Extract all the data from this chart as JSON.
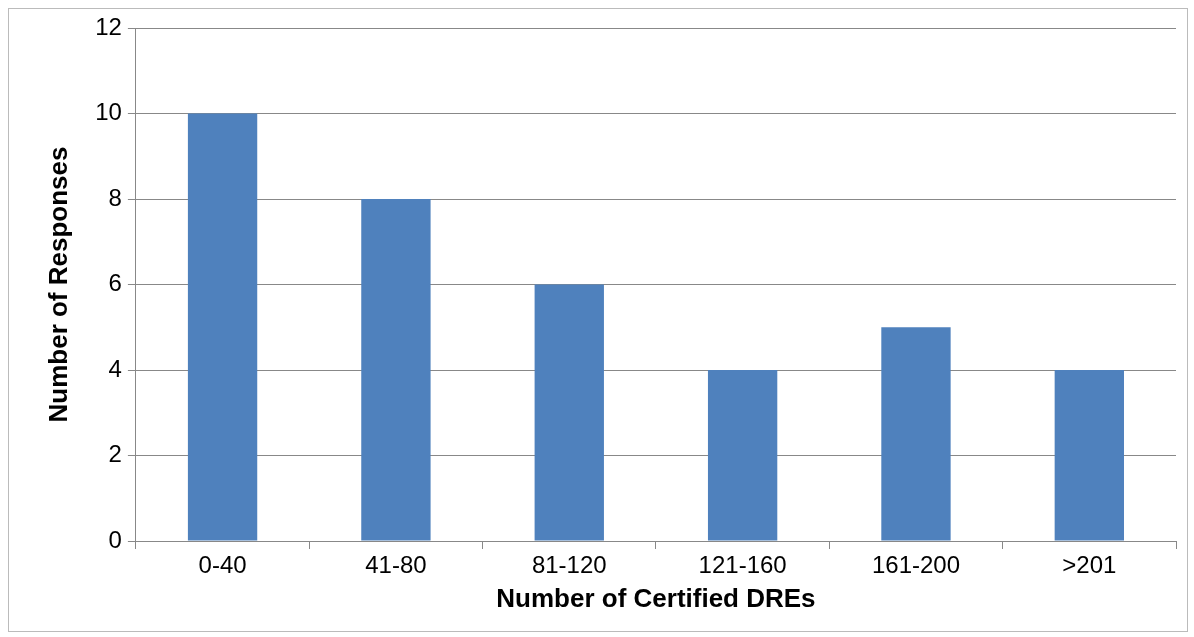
{
  "chart_data": {
    "type": "bar",
    "xlabel": "Number of Certified DREs",
    "ylabel": "Number of Responses",
    "categories": [
      "0-40",
      "41-80",
      "81-120",
      "121-160",
      "161-200",
      ">201"
    ],
    "values": [
      10,
      8,
      6,
      4,
      5,
      4
    ],
    "color": "#4f81bd",
    "ylim": [
      0,
      12
    ],
    "yticks": [
      0,
      2,
      4,
      6,
      8,
      10,
      12
    ],
    "grid": "y",
    "legend": false
  }
}
